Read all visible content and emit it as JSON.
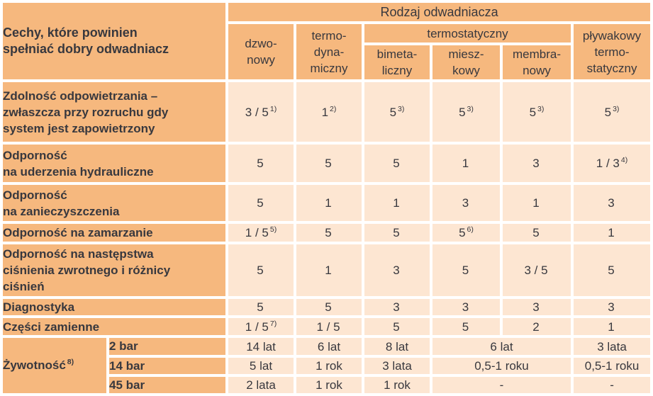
{
  "colors": {
    "header_and_label_cell": "#f6b87e",
    "value_cell": "#fde6d2",
    "text": "#38383e",
    "grid_background": "#ffffff"
  },
  "header": {
    "features_label": "Cechy, które powinien\nspełniać dobry odwadniacz",
    "group_label": "Rodzaj odwadniacza",
    "thermostatic_group": "termostatyczny",
    "columns": {
      "bell": "dzwo-\nnowy",
      "thermodynamic": "termo-\ndyna-\nmiczny",
      "bimetallic": "bimeta-\nliczny",
      "bellows": "miesz-\nkowy",
      "membrane": "membra-\nnowy",
      "float_thermostatic": "pływakowy\ntermo-\nstatyczny"
    }
  },
  "rows": [
    {
      "label": "Zdolność odpowietrzania –\nzwłaszcza przy rozruchu gdy\nsystem jest zapowietrzony",
      "values": [
        {
          "v": "3 / 5",
          "sup": "1)"
        },
        {
          "v": "1",
          "sup": "2)"
        },
        {
          "v": "5",
          "sup": "3)"
        },
        {
          "v": "5",
          "sup": "3)"
        },
        {
          "v": "5",
          "sup": "3)"
        },
        {
          "v": "5",
          "sup": "3)"
        }
      ]
    },
    {
      "label": "Odporność\nna uderzenia hydrauliczne",
      "values": [
        {
          "v": "5"
        },
        {
          "v": "5"
        },
        {
          "v": "5"
        },
        {
          "v": "1"
        },
        {
          "v": "3"
        },
        {
          "v": "1 / 3",
          "sup": "4)"
        }
      ]
    },
    {
      "label": "Odporność\nna zanieczyszczenia",
      "values": [
        {
          "v": "5"
        },
        {
          "v": "1"
        },
        {
          "v": "1"
        },
        {
          "v": "3"
        },
        {
          "v": "1"
        },
        {
          "v": "3"
        }
      ]
    },
    {
      "label": "Odporność na zamarzanie",
      "values": [
        {
          "v": "1 / 5",
          "sup": "5)"
        },
        {
          "v": "5"
        },
        {
          "v": "5"
        },
        {
          "v": "5",
          "sup": "6)"
        },
        {
          "v": "5"
        },
        {
          "v": "1"
        }
      ]
    },
    {
      "label": "Odporność na następstwa\nciśnienia zwrotnego i różnicy\nciśnień",
      "values": [
        {
          "v": "5"
        },
        {
          "v": "1"
        },
        {
          "v": "3"
        },
        {
          "v": "5"
        },
        {
          "v": "3 / 5"
        },
        {
          "v": "5"
        }
      ]
    },
    {
      "label": "Diagnostyka",
      "values": [
        {
          "v": "5"
        },
        {
          "v": "5"
        },
        {
          "v": "3"
        },
        {
          "v": "3"
        },
        {
          "v": "3"
        },
        {
          "v": "3"
        }
      ]
    },
    {
      "label": "Części zamienne",
      "values": [
        {
          "v": "1 / 5",
          "sup": "7)"
        },
        {
          "v": "1 / 5"
        },
        {
          "v": "5"
        },
        {
          "v": "5"
        },
        {
          "v": "2"
        },
        {
          "v": "1"
        }
      ]
    }
  ],
  "lifetime": {
    "label": "Żywotność",
    "label_sup": "8)",
    "rows": [
      {
        "pressure": "2 bar",
        "values": [
          "14 lat",
          "6 lat",
          "8 lat",
          "6 lat",
          "3 lata"
        ]
      },
      {
        "pressure": "14 bar",
        "values": [
          "5 lat",
          "1 rok",
          "3 lata",
          "0,5-1 roku",
          "0,5-1 roku"
        ]
      },
      {
        "pressure": "45 bar",
        "values": [
          "2 lata",
          "1 rok",
          "1 rok",
          "-",
          "-"
        ]
      }
    ]
  }
}
